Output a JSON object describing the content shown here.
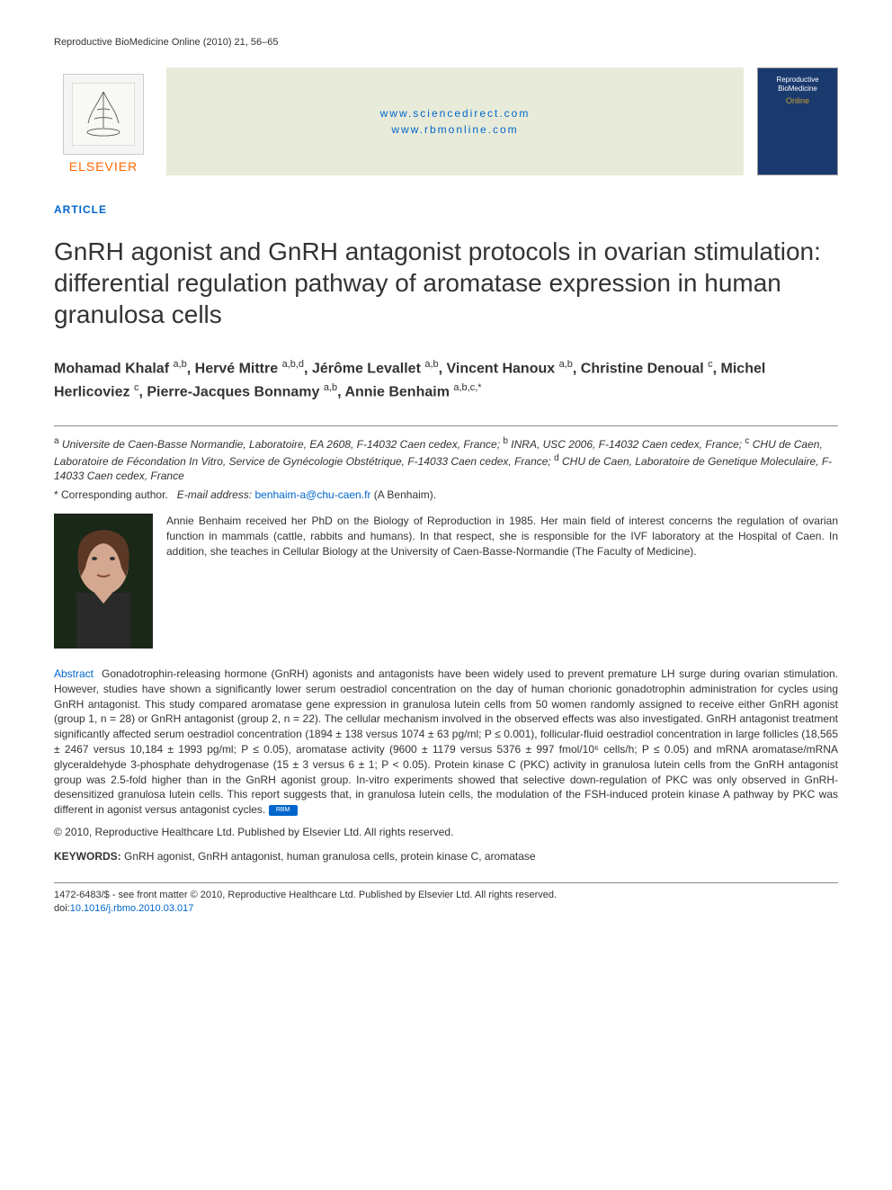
{
  "running_head": "Reproductive BioMedicine Online (2010) 21, 56–65",
  "header": {
    "elsevier_label": "ELSEVIER",
    "link1": "www.sciencedirect.com",
    "link2": "www.rbmonline.com",
    "journal_cover_title": "Reproductive BioMedicine",
    "journal_cover_sub": "Online"
  },
  "article_label": "ARTICLE",
  "title": "GnRH agonist and GnRH antagonist protocols in ovarian stimulation: differential regulation pathway of aromatase expression in human granulosa cells",
  "authors_html": "Mohamad Khalaf <sup>a,b</sup>, Hervé Mittre <sup>a,b,d</sup>, Jérôme Levallet <sup>a,b</sup>, Vincent Hanoux <sup>a,b</sup>, Christine Denoual <sup>c</sup>, Michel Herlicoviez <sup>c</sup>, Pierre-Jacques Bonnamy <sup>a,b</sup>, Annie Benhaim <sup>a,b,c,*</sup>",
  "affiliations_html": "<sup>a</sup> Universite de Caen-Basse Normandie, Laboratoire, EA 2608, F-14032 Caen cedex, France; <sup>b</sup> INRA, USC 2006, F-14032 Caen cedex, France; <sup>c</sup> CHU de Caen, Laboratoire de Fécondation In Vitro, Service de Gynécologie Obstétrique, F-14033 Caen cedex, France; <sup>d</sup> CHU de Caen, Laboratoire de Genetique Moleculaire, F-14033 Caen cedex, France",
  "corresponding": {
    "prefix": "* Corresponding author.",
    "email_label": "E-mail address:",
    "email": "benhaim-a@chu-caen.fr",
    "suffix": "(A Benhaim)."
  },
  "bio": "Annie Benhaim received her PhD on the Biology of Reproduction in 1985. Her main field of interest concerns the regulation of ovarian function in mammals (cattle, rabbits and humans). In that respect, she is responsible for the IVF laboratory at the Hospital of Caen. In addition, she teaches in Cellular Biology at the University of Caen-Basse-Normandie (The Faculty of Medicine).",
  "abstract": {
    "label": "Abstract",
    "text": "Gonadotrophin-releasing hormone (GnRH) agonists and antagonists have been widely used to prevent premature LH surge during ovarian stimulation. However, studies have shown a significantly lower serum oestradiol concentration on the day of human chorionic gonadotrophin administration for cycles using GnRH antagonist. This study compared aromatase gene expression in granulosa lutein cells from 50 women randomly assigned to receive either GnRH agonist (group 1, n = 28) or GnRH antagonist (group 2, n = 22). The cellular mechanism involved in the observed effects was also investigated. GnRH antagonist treatment significantly affected serum oestradiol concentration (1894 ± 138 versus 1074 ± 63 pg/ml; P ≤ 0.001), follicular-fluid oestradiol concentration in large follicles (18,565 ± 2467 versus 10,184 ± 1993 pg/ml; P ≤ 0.05), aromatase activity (9600 ± 1179 versus 5376 ± 997 fmol/10⁶ cells/h; P ≤ 0.05) and mRNA aromatase/mRNA glyceraldehyde 3-phosphate dehydrogenase (15 ± 3 versus 6 ± 1; P < 0.05). Protein kinase C (PKC) activity in granulosa lutein cells from the GnRH antagonist group was 2.5-fold higher than in the GnRH agonist group. In-vitro experiments showed that selective down-regulation of PKC was only observed in GnRH-desensitized granulosa lutein cells. This report suggests that, in granulosa lutein cells, the modulation of the FSH-induced protein kinase A pathway by PKC was different in agonist versus antagonist cycles."
  },
  "copyright": "© 2010, Reproductive Healthcare Ltd. Published by Elsevier Ltd. All rights reserved.",
  "keywords": {
    "label": "KEYWORDS:",
    "text": "GnRH agonist, GnRH antagonist, human granulosa cells, protein kinase C, aromatase"
  },
  "footer": {
    "line1": "1472-6483/$ - see front matter © 2010, Reproductive Healthcare Ltd. Published by Elsevier Ltd. All rights reserved.",
    "doi_prefix": "doi:",
    "doi": "10.1016/j.rbmo.2010.03.017"
  },
  "colors": {
    "link": "#0066cc",
    "elsevier_orange": "#ff6600",
    "banner_bg": "#e8ebd9",
    "journal_cover_bg": "#1a3a6e",
    "text": "#333333"
  }
}
